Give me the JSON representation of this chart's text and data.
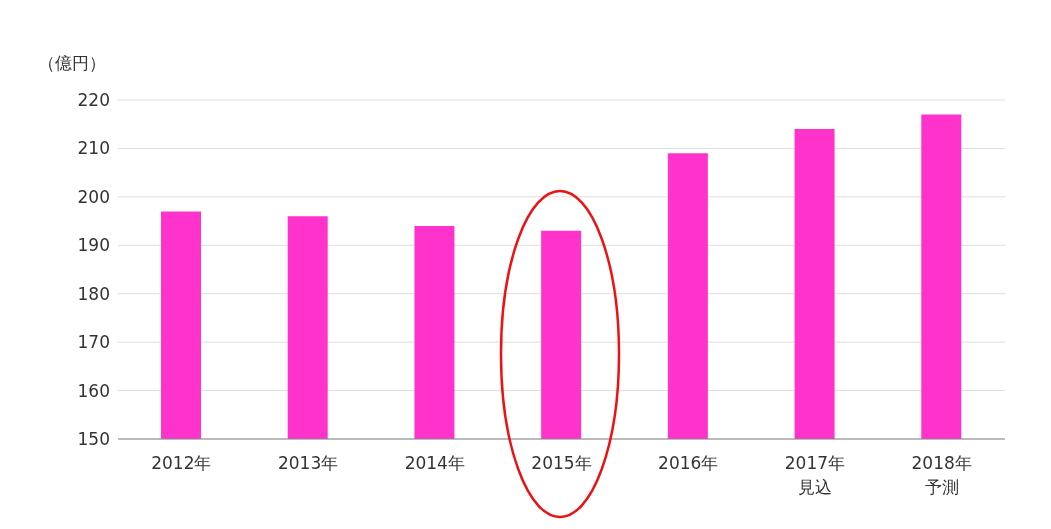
{
  "chart_data": {
    "type": "bar",
    "ylabel": "（億円）",
    "categories": [
      "2012年",
      "2013年",
      "2014年",
      "2015年",
      "2016年",
      "2017年見込",
      "2018年予測"
    ],
    "values": [
      197,
      196,
      194,
      193,
      209,
      214,
      217
    ],
    "color": "#ff33cc",
    "ylim": [
      150,
      220
    ],
    "yticks": [
      150,
      160,
      170,
      180,
      190,
      200,
      210,
      220
    ],
    "grid": "y",
    "legend": false
  }
}
